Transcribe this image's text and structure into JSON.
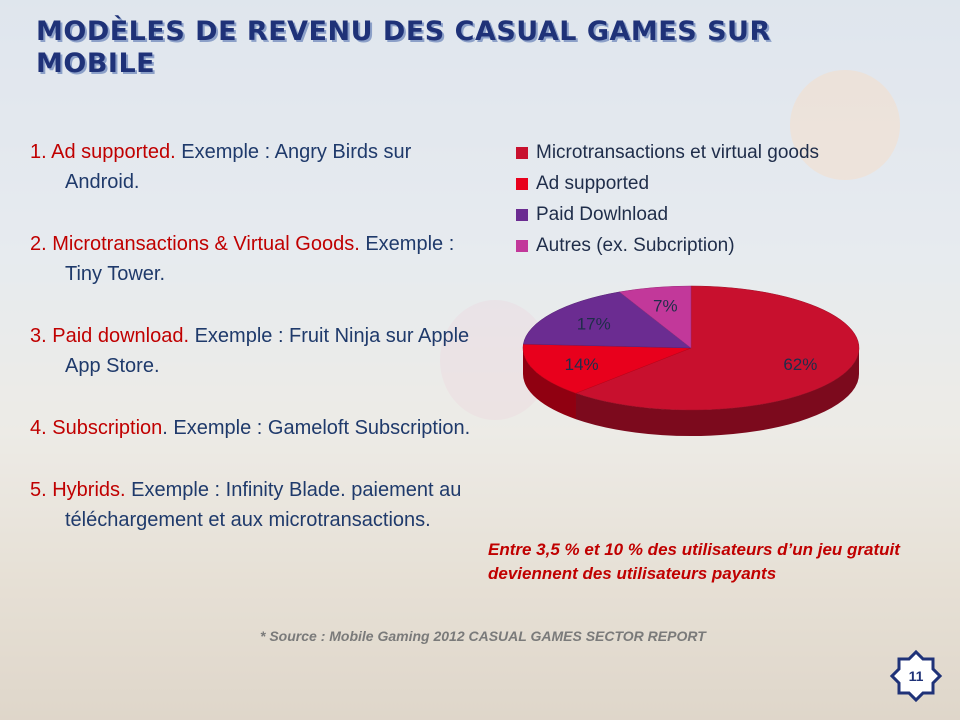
{
  "title": "Modèles de revenu des casual games sur mobile",
  "list": [
    {
      "label": "1.  Ad supported.",
      "text": "  Exemple : Angry Birds sur Android."
    },
    {
      "label": "2. Microtransactions & Virtual Goods.",
      "text": " Exemple : Tiny Tower."
    },
    {
      "label": "3. Paid download.",
      "text": "  Exemple : Fruit Ninja sur Apple App Store."
    },
    {
      "label": "4. Subscription",
      "text": ". Exemple : Gameloft Subscription."
    },
    {
      "label": "5. Hybrids.",
      "text": " Exemple : Infinity Blade. paiement au téléchargement et aux microtransactions."
    }
  ],
  "chart_data": {
    "type": "pie",
    "categories": [
      "Microtransactions et virtual goods",
      "Ad supported",
      "Paid Dowlnload",
      "Autres (ex. Subcription)"
    ],
    "values": [
      62,
      14,
      17,
      7
    ],
    "data_labels": [
      "62%",
      "14%",
      "17%",
      "7%"
    ],
    "colors": [
      "#c8102e",
      "#e8001c",
      "#6b2c91",
      "#c2389a"
    ],
    "legend_position": "top"
  },
  "stat_note": "Entre 3,5 % et 10 % des utilisateurs  d’un jeu gratuit deviennent des utilisateurs payants",
  "source_note": "* Source :  Mobile Gaming 2012 CASUAL GAMES SECTOR REPORT",
  "page_number": "11"
}
